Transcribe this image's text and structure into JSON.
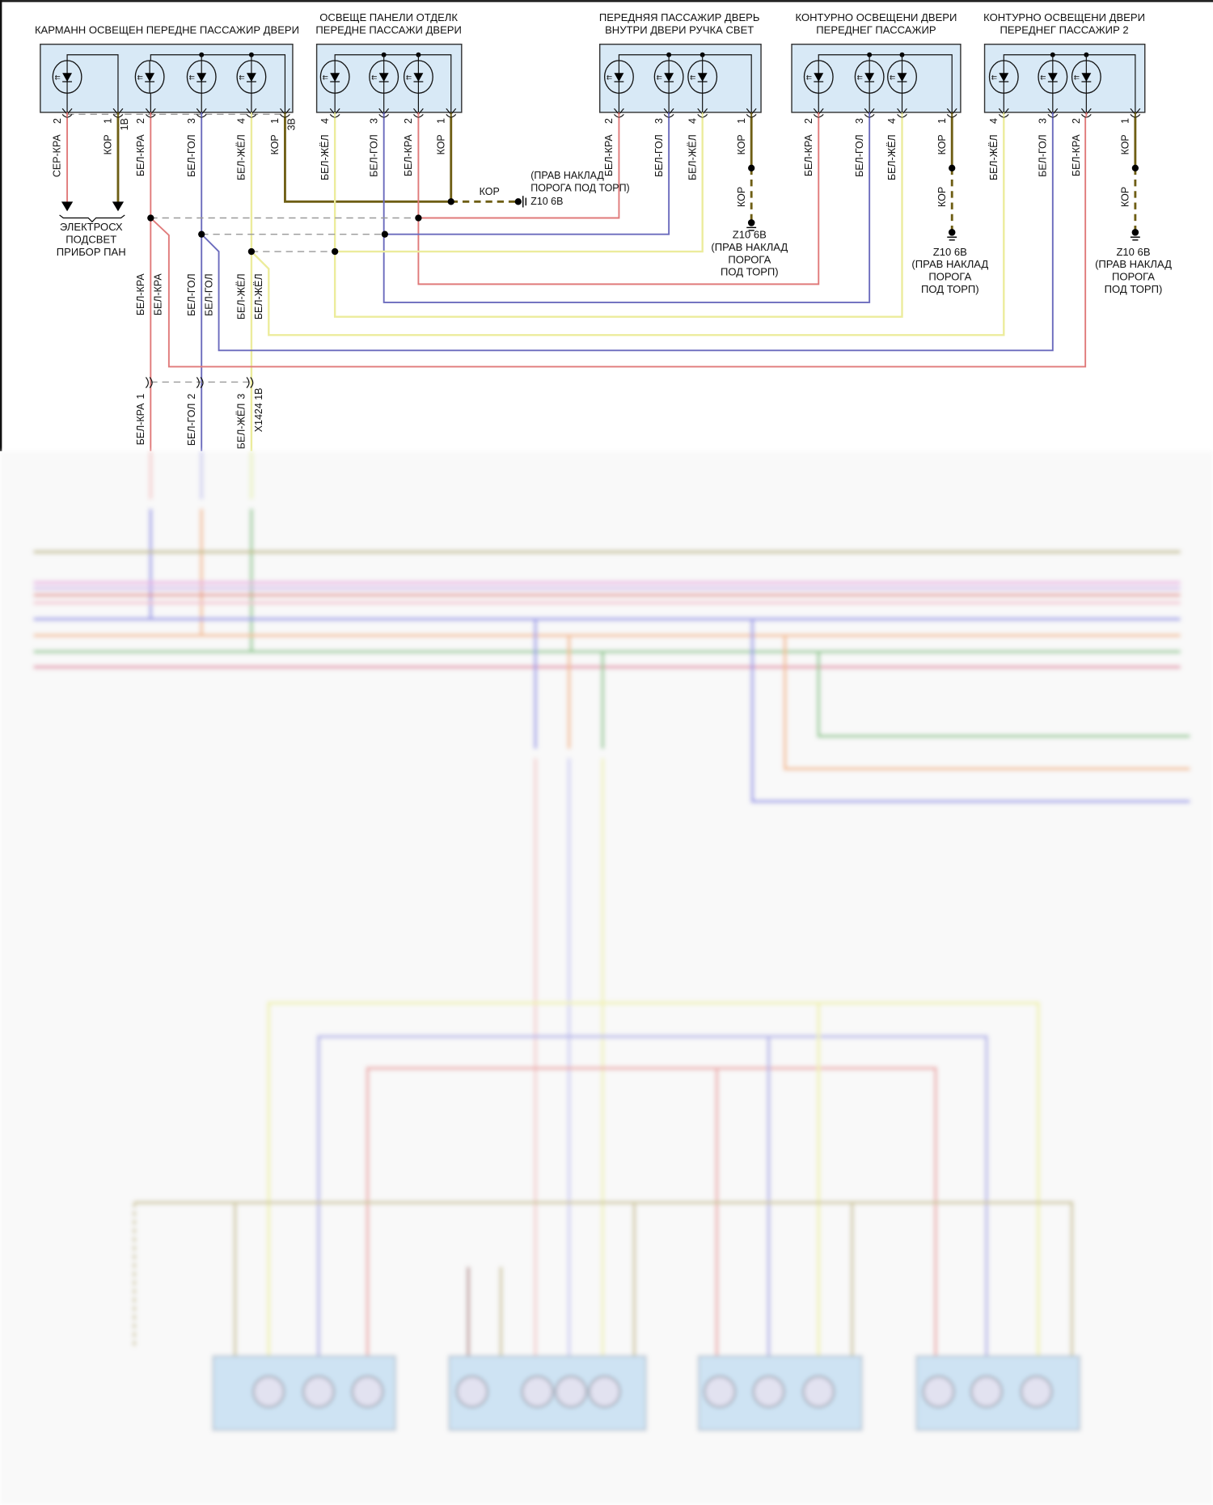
{
  "colors": {
    "red": "#e07a7a",
    "blue": "#6b6bbd",
    "yellow": "#ecec9c",
    "olive": "#6e5e14",
    "box_fill": "#d8e9f6",
    "pink": "#e6a6e0",
    "orange": "#f2b27a",
    "green": "#7cc27c"
  },
  "components": [
    {
      "title_lines": [
        "КАРМАНН ОСВЕЩЕН ПЕРЕДНЕ ПАССАЖИР ДВЕРИ"
      ],
      "pins": [
        {
          "num": "2",
          "wire": "СЕР-КРА"
        },
        {
          "num": "1",
          "wire": "КОР",
          "extra": "1В"
        },
        {
          "num": "2",
          "wire": "БЕЛ-КРА"
        },
        {
          "num": "3",
          "wire": "БЕЛ-ГОЛ"
        },
        {
          "num": "4",
          "wire": "БЕЛ-ЖЁЛ"
        },
        {
          "num": "1",
          "wire": "КОР",
          "extra": "3В"
        }
      ]
    },
    {
      "title_lines": [
        "ОСВЕЩЕ ПАНЕЛИ ОТДЕЛК",
        "ПЕРЕДНЕ ПАССАЖИ ДВЕРИ"
      ],
      "pins": [
        {
          "num": "4",
          "wire": "БЕЛ-ЖЁЛ"
        },
        {
          "num": "3",
          "wire": "БЕЛ-ГОЛ"
        },
        {
          "num": "2",
          "wire": "БЕЛ-КРА"
        },
        {
          "num": "1",
          "wire": "КОР"
        }
      ]
    },
    {
      "title_lines": [
        "ПЕРЕДНЯЯ ПАССАЖИР ДВЕРЬ",
        "ВНУТРИ ДВЕРИ РУЧКА СВЕТ"
      ],
      "pins": [
        {
          "num": "2",
          "wire": "БЕЛ-КРА"
        },
        {
          "num": "3",
          "wire": "БЕЛ-ГОЛ"
        },
        {
          "num": "4",
          "wire": "БЕЛ-ЖЁЛ"
        },
        {
          "num": "1",
          "wire": "КОР"
        }
      ]
    },
    {
      "title_lines": [
        "КОНТУРНО ОСВЕЩЕНИ ДВЕРИ",
        "ПЕРЕДНЕГ ПАССАЖИР"
      ],
      "pins": [
        {
          "num": "2",
          "wire": "БЕЛ-КРА"
        },
        {
          "num": "3",
          "wire": "БЕЛ-ГОЛ"
        },
        {
          "num": "4",
          "wire": "БЕЛ-ЖЁЛ"
        },
        {
          "num": "1",
          "wire": "КОР"
        }
      ]
    },
    {
      "title_lines": [
        "КОНТУРНО ОСВЕЩЕНИ ДВЕРИ",
        "ПЕРЕДНЕГ ПАССАЖИР 2"
      ],
      "pins": [
        {
          "num": "4",
          "wire": "БЕЛ-ЖЁЛ"
        },
        {
          "num": "3",
          "wire": "БЕЛ-ГОЛ"
        },
        {
          "num": "2",
          "wire": "БЕЛ-КРА"
        },
        {
          "num": "1",
          "wire": "КОР"
        }
      ]
    }
  ],
  "destination": {
    "lines": [
      "ЭЛЕКТРОСХ",
      "ПОДСВЕТ",
      "ПРИБОР ПАН"
    ]
  },
  "ground_main": {
    "wire": "КОР",
    "lines": [
      "(ПРАВ НАКЛАД",
      "ПОРОГА ПОД ТОРП)",
      "Z10 6B"
    ]
  },
  "grounds": [
    {
      "wire": "КОР",
      "lines": [
        "Z10 6B",
        "(ПРАВ НАКЛАД",
        "ПОРОГА",
        "ПОД ТОРП)"
      ]
    },
    {
      "wire": "КОР",
      "lines": [
        "Z10 6B",
        "(ПРАВ НАКЛАД",
        "ПОРОГА",
        "ПОД ТОРП)"
      ]
    },
    {
      "wire": "КОР",
      "lines": [
        "Z10 6B",
        "(ПРАВ НАКЛАД",
        "ПОРОГА",
        "ПОД ТОРП)"
      ]
    }
  ],
  "splice_labels": [
    "БЕЛ-КРА",
    "БЕЛ-КРА",
    "БЕЛ-ГОЛ",
    "БЕЛ-ГОЛ",
    "БЕЛ-ЖЁЛ",
    "БЕЛ-ЖЁЛ"
  ],
  "connector": {
    "name": "X1424 1B",
    "pins": [
      {
        "num": "1",
        "wire": "БЕЛ-КРА"
      },
      {
        "num": "2",
        "wire": "БЕЛ-ГОЛ"
      },
      {
        "num": "3",
        "wire": "БЕЛ-ЖЁЛ"
      }
    ]
  }
}
